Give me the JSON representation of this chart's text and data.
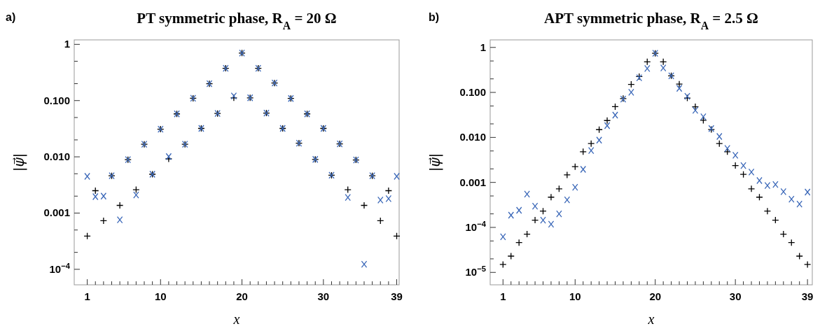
{
  "chart_data": [
    {
      "type": "scatter",
      "title": "PT symmetric phase, R$_{A}$ = 20 Ω",
      "xlabel": "x",
      "ylabel": "|ψ⃗|",
      "annotations": [
        "a)"
      ],
      "log": "y",
      "grid": false,
      "x": [
        1,
        2,
        3,
        4,
        5,
        6,
        7,
        8,
        9,
        10,
        11,
        12,
        13,
        14,
        15,
        16,
        17,
        18,
        19,
        20,
        21,
        22,
        23,
        24,
        25,
        26,
        27,
        28,
        29,
        30,
        31,
        32,
        33,
        34,
        35,
        36,
        37,
        38,
        39
      ],
      "xlim": [
        -0.6,
        39.3
      ],
      "xticks": [
        1,
        {
          "value": 2,
          "label": null
        },
        {
          "value": 3,
          "label": null
        },
        {
          "value": 4,
          "label": null
        },
        {
          "value": 5,
          "label": null
        },
        {
          "value": 6,
          "label": null
        },
        {
          "value": 7,
          "label": null
        },
        {
          "value": 8,
          "label": null
        },
        {
          "value": 9,
          "label": null
        },
        10,
        {
          "value": 11,
          "label": null
        },
        {
          "value": 12,
          "label": null
        },
        {
          "value": 13,
          "label": null
        },
        {
          "value": 14,
          "label": null
        },
        {
          "value": 15,
          "label": null
        },
        {
          "value": 16,
          "label": null
        },
        {
          "value": 17,
          "label": null
        },
        {
          "value": 18,
          "label": null
        },
        {
          "value": 19,
          "label": null
        },
        20,
        {
          "value": 21,
          "label": null
        },
        {
          "value": 22,
          "label": null
        },
        {
          "value": 23,
          "label": null
        },
        {
          "value": 24,
          "label": null
        },
        {
          "value": 25,
          "label": null
        },
        {
          "value": 26,
          "label": null
        },
        {
          "value": 27,
          "label": null
        },
        {
          "value": 28,
          "label": null
        },
        {
          "value": 29,
          "label": null
        },
        30,
        {
          "value": 31,
          "label": null
        },
        {
          "value": 32,
          "label": null
        },
        {
          "value": 33,
          "label": null
        },
        {
          "value": 34,
          "label": null
        },
        {
          "value": 35,
          "label": null
        },
        {
          "value": 36,
          "label": null
        },
        {
          "value": 37,
          "label": null
        },
        {
          "value": 38,
          "label": null
        },
        39
      ],
      "ylim": [
        5.3e-05,
        1.2
      ],
      "yticks": [
        {
          "value": 0.0001,
          "label": "10$^{−4}$"
        },
        {
          "value": 0.0002,
          "label": null
        },
        {
          "value": 0.0005,
          "label": null
        },
        {
          "value": 0.001,
          "label": "0.001"
        },
        {
          "value": 0.002,
          "label": null
        },
        {
          "value": 0.005,
          "label": null
        },
        {
          "value": 0.01,
          "label": "0.010"
        },
        {
          "value": 0.02,
          "label": null
        },
        {
          "value": 0.05,
          "label": null
        },
        {
          "value": 0.1,
          "label": "0.100"
        },
        {
          "value": 0.2,
          "label": null
        },
        {
          "value": 0.5,
          "label": null
        },
        1
      ],
      "series": [
        {
          "color": "#000000",
          "marker": "plus",
          "values": [
            0.00039,
            0.0025,
            0.00073,
            0.0046,
            0.00137,
            0.0089,
            0.0026,
            0.0167,
            0.0049,
            0.031,
            0.0092,
            0.058,
            0.0167,
            0.11,
            0.032,
            0.199,
            0.059,
            0.375,
            0.112,
            0.7,
            0.112,
            0.375,
            0.06,
            0.205,
            0.032,
            0.109,
            0.0175,
            0.058,
            0.009,
            0.032,
            0.0047,
            0.017,
            0.0026,
            0.0088,
            0.00137,
            0.0046,
            0.00073,
            0.0025,
            0.00039
          ]
        },
        {
          "color": "#3a67b8",
          "marker": "cross",
          "values": [
            0.0045,
            0.00196,
            0.002,
            0.0046,
            0.00076,
            0.0089,
            0.0021,
            0.0167,
            0.0049,
            0.031,
            0.0101,
            0.058,
            0.0167,
            0.11,
            0.032,
            0.199,
            0.059,
            0.375,
            0.121,
            0.7,
            0.112,
            0.375,
            0.06,
            0.205,
            0.032,
            0.109,
            0.0175,
            0.058,
            0.009,
            0.032,
            0.0047,
            0.017,
            0.0019,
            0.0088,
            0.000123,
            0.0046,
            0.0017,
            0.0018,
            0.0045
          ]
        }
      ]
    },
    {
      "type": "scatter",
      "title": "APT symmetric phase, R$_{A}$ = 2.5 Ω",
      "xlabel": "x",
      "ylabel": "|ψ⃗|",
      "annotations": [
        "b)"
      ],
      "log": "y",
      "grid": false,
      "x": [
        1,
        2,
        3,
        4,
        5,
        6,
        7,
        8,
        9,
        10,
        11,
        12,
        13,
        14,
        15,
        16,
        17,
        18,
        19,
        20,
        21,
        22,
        23,
        24,
        25,
        26,
        27,
        28,
        29,
        30,
        31,
        32,
        33,
        34,
        35,
        36,
        37,
        38,
        39
      ],
      "xlim": [
        -0.6,
        39.6
      ],
      "xticks": [
        1,
        {
          "value": 2,
          "label": null
        },
        {
          "value": 3,
          "label": null
        },
        {
          "value": 4,
          "label": null
        },
        {
          "value": 5,
          "label": null
        },
        {
          "value": 6,
          "label": null
        },
        {
          "value": 7,
          "label": null
        },
        {
          "value": 8,
          "label": null
        },
        {
          "value": 9,
          "label": null
        },
        10,
        {
          "value": 11,
          "label": null
        },
        {
          "value": 12,
          "label": null
        },
        {
          "value": 13,
          "label": null
        },
        {
          "value": 14,
          "label": null
        },
        {
          "value": 15,
          "label": null
        },
        {
          "value": 16,
          "label": null
        },
        {
          "value": 17,
          "label": null
        },
        {
          "value": 18,
          "label": null
        },
        {
          "value": 19,
          "label": null
        },
        20,
        {
          "value": 21,
          "label": null
        },
        {
          "value": 22,
          "label": null
        },
        {
          "value": 23,
          "label": null
        },
        {
          "value": 24,
          "label": null
        },
        {
          "value": 25,
          "label": null
        },
        {
          "value": 26,
          "label": null
        },
        {
          "value": 27,
          "label": null
        },
        {
          "value": 28,
          "label": null
        },
        {
          "value": 29,
          "label": null
        },
        30,
        {
          "value": 31,
          "label": null
        },
        {
          "value": 32,
          "label": null
        },
        {
          "value": 33,
          "label": null
        },
        {
          "value": 34,
          "label": null
        },
        {
          "value": 35,
          "label": null
        },
        {
          "value": 36,
          "label": null
        },
        {
          "value": 37,
          "label": null
        },
        {
          "value": 38,
          "label": null
        },
        39
      ],
      "ylim": [
        5.3e-06,
        1.47
      ],
      "yticks": [
        {
          "value": 1e-05,
          "label": "10$^{−5}$"
        },
        {
          "value": 2e-05,
          "label": null
        },
        {
          "value": 5e-05,
          "label": null
        },
        {
          "value": 0.0001,
          "label": "10$^{−4}$"
        },
        {
          "value": 0.0002,
          "label": null
        },
        {
          "value": 0.0005,
          "label": null
        },
        {
          "value": 0.001,
          "label": "0.001"
        },
        {
          "value": 0.002,
          "label": null
        },
        {
          "value": 0.005,
          "label": null
        },
        {
          "value": 0.01,
          "label": "0.010"
        },
        {
          "value": 0.02,
          "label": null
        },
        {
          "value": 0.05,
          "label": null
        },
        {
          "value": 0.1,
          "label": "0.100"
        },
        {
          "value": 0.2,
          "label": null
        },
        {
          "value": 0.5,
          "label": null
        },
        1
      ],
      "series": [
        {
          "color": "#000000",
          "marker": "plus",
          "values": [
            1.5e-05,
            2.3e-05,
            4.6e-05,
            7.1e-05,
            0.000145,
            0.00023,
            0.00047,
            0.00072,
            0.00147,
            0.00224,
            0.0048,
            0.0073,
            0.0149,
            0.0237,
            0.0483,
            0.073,
            0.151,
            0.225,
            0.478,
            0.74,
            0.478,
            0.234,
            0.153,
            0.075,
            0.048,
            0.024,
            0.015,
            0.0073,
            0.0048,
            0.00237,
            0.00151,
            0.00072,
            0.00047,
            0.00023,
            0.000145,
            7.1e-05,
            4.6e-05,
            2.3e-05,
            1.5e-05
          ]
        },
        {
          "color": "#3a67b8",
          "marker": "cross",
          "values": [
            6.2e-05,
            0.000187,
            0.00024,
            0.00055,
            0.000296,
            0.000145,
            0.000118,
            0.0002,
            0.00041,
            0.00078,
            0.00195,
            0.0051,
            0.0087,
            0.0183,
            0.0313,
            0.071,
            0.101,
            0.212,
            0.34,
            0.74,
            0.35,
            0.234,
            0.123,
            0.082,
            0.04,
            0.0287,
            0.0157,
            0.0105,
            0.0057,
            0.004,
            0.00237,
            0.0017,
            0.0011,
            0.00085,
            0.000897,
            0.000625,
            0.000425,
            0.00033,
            0.00061
          ]
        }
      ]
    }
  ]
}
